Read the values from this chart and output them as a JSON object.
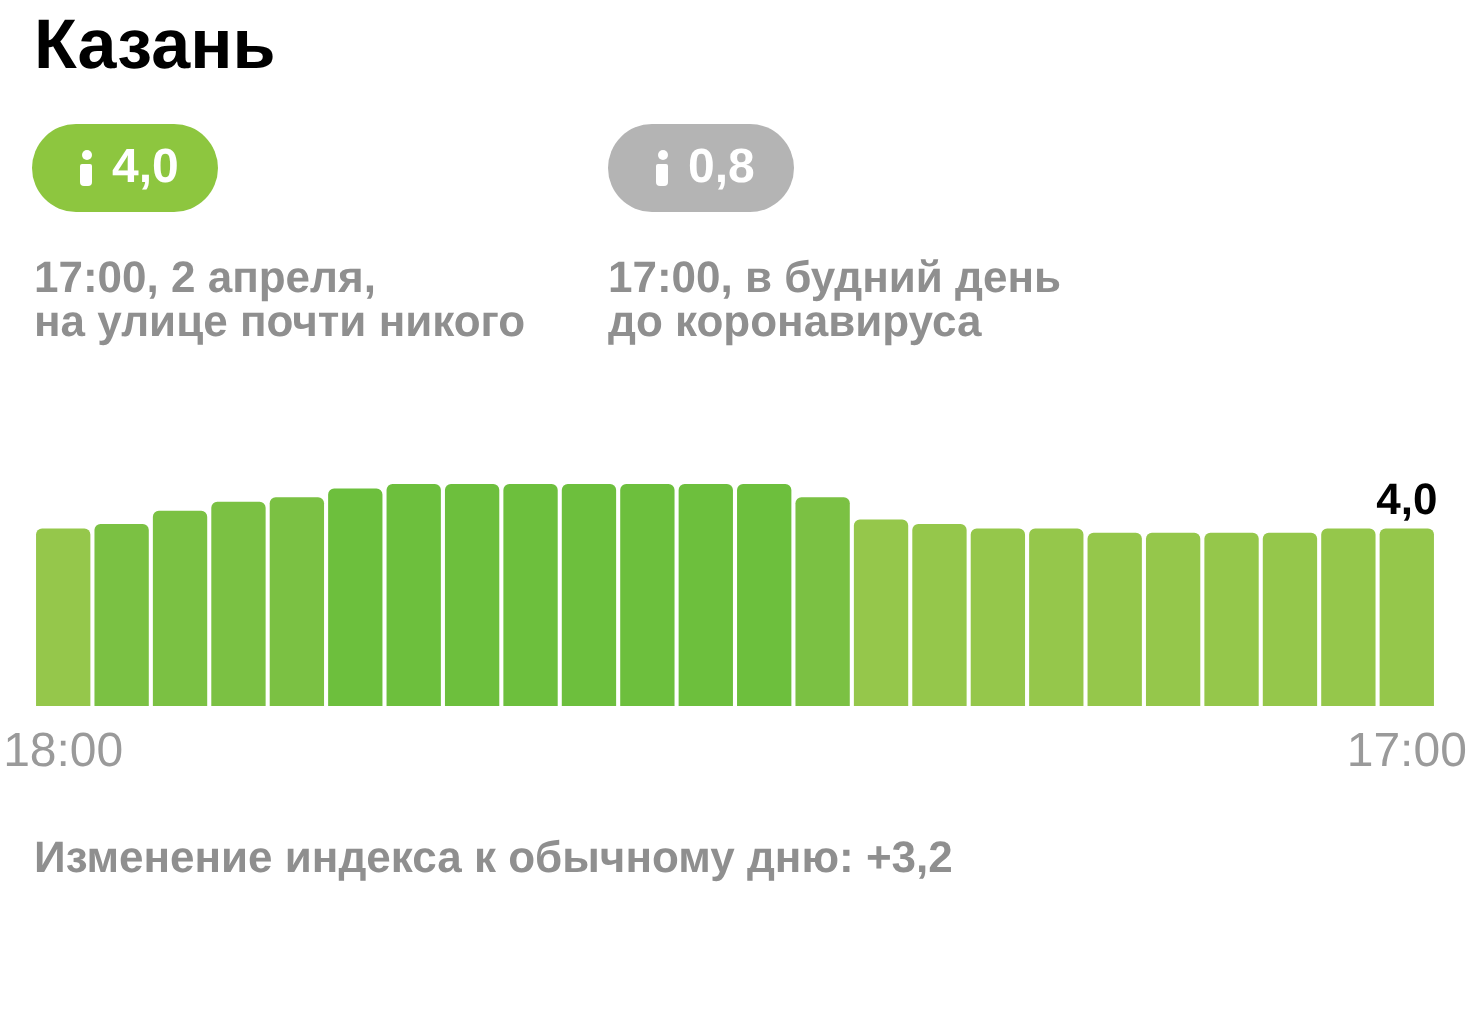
{
  "chart_data": {
    "type": "bar",
    "title": "Казань",
    "categories": [
      "18:00",
      null,
      null,
      null,
      null,
      null,
      null,
      null,
      null,
      null,
      null,
      null,
      null,
      null,
      null,
      null,
      null,
      null,
      null,
      null,
      null,
      null,
      null,
      "17:00"
    ],
    "values": [
      4.0,
      4.1,
      4.4,
      4.6,
      4.7,
      4.9,
      5.0,
      5.0,
      5.0,
      5.0,
      5.0,
      5.0,
      5.0,
      4.7,
      4.2,
      4.1,
      4.0,
      4.0,
      3.9,
      3.9,
      3.9,
      3.9,
      4.0,
      4.0
    ],
    "colors": [
      "#95c74b",
      "#7bc143",
      "#7bc143",
      "#7bc143",
      "#7bc143",
      "#6dbf3d",
      "#6dbf3d",
      "#6dbf3d",
      "#6dbf3d",
      "#6dbf3d",
      "#6dbf3d",
      "#6dbf3d",
      "#6dbf3d",
      "#7bc143",
      "#95c74b",
      "#95c74b",
      "#95c74b",
      "#95c74b",
      "#95c74b",
      "#95c74b",
      "#95c74b",
      "#95c74b",
      "#95c74b",
      "#95c74b"
    ],
    "value_labels": [
      null,
      null,
      null,
      null,
      null,
      null,
      null,
      null,
      null,
      null,
      null,
      null,
      null,
      null,
      null,
      null,
      null,
      null,
      null,
      null,
      null,
      null,
      null,
      "4,0"
    ],
    "tick_labels": "x",
    "annotations": [
      "4,0",
      "0,8",
      "17:00, 2 апреля,\nна улице почти никого",
      "17:00, в будний день\nдо коронавируса",
      "Изменение индекса к обычному дню: +3,2"
    ]
  }
}
